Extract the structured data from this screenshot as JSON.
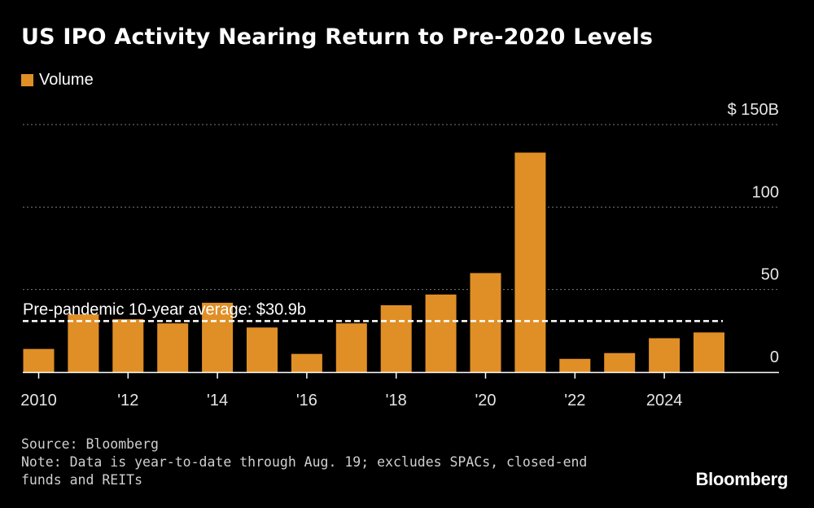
{
  "header": {
    "title": "US IPO Activity Nearing Return to Pre-2020 Levels"
  },
  "colors": {
    "bar": "#e08f26",
    "background": "#000000",
    "grid": "#7a7a7a",
    "text": "#ffffff",
    "average_line": "#ffffff"
  },
  "footer": {
    "source": "Source: Bloomberg",
    "note_line1": "Note: Data is year-to-date through Aug. 19; excludes SPACs, closed-end",
    "note_line2": "funds and REITs",
    "brand": "Bloomberg"
  },
  "chart_data": {
    "type": "bar",
    "categories": [
      "2010",
      "2011",
      "2012",
      "2013",
      "2014",
      "2015",
      "2016",
      "2017",
      "2018",
      "2019",
      "2020",
      "2021",
      "2022",
      "2023",
      "2024",
      "2025"
    ],
    "x_tick_labels": [
      {
        "category": "2010",
        "label": "2010"
      },
      {
        "category": "2012",
        "label": "'12"
      },
      {
        "category": "2014",
        "label": "'14"
      },
      {
        "category": "2016",
        "label": "'16"
      },
      {
        "category": "2018",
        "label": "'18"
      },
      {
        "category": "2020",
        "label": "'20"
      },
      {
        "category": "2022",
        "label": "'22"
      },
      {
        "category": "2024",
        "label": "2024"
      }
    ],
    "series": [
      {
        "name": "Volume",
        "values": [
          14,
          35,
          32,
          29.5,
          42,
          27,
          11,
          29.5,
          40.5,
          47,
          60,
          133,
          8,
          11.5,
          20.5,
          24
        ]
      }
    ],
    "ylim": [
      0,
      150
    ],
    "y_ticks": [
      {
        "value": 0,
        "label": "0"
      },
      {
        "value": 50,
        "label": "50"
      },
      {
        "value": 100,
        "label": "100"
      },
      {
        "value": 150,
        "label": "$ 150B"
      }
    ],
    "grid": true,
    "legend_position": "top-left",
    "reference_line": {
      "value": 30.9,
      "label": "Pre-pandemic 10-year average: $30.9b"
    }
  }
}
